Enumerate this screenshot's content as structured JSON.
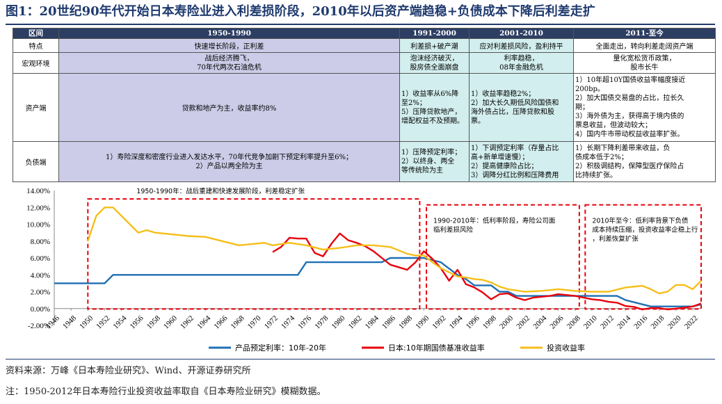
{
  "title": "图1：20世纪90年代开始日本寿险业进入利差损阶段，2010年以后资产端趋稳+负债成本下降后利差走扩",
  "table": {
    "header": [
      "区间",
      "1950-1990",
      "1991-2000",
      "2001-2010",
      "2011-至今"
    ],
    "rows": [
      {
        "label": "特点",
        "cells": [
          "快速增长阶段，正利差",
          "利差损+破产潮",
          "应对利差损风险，盈利持平",
          "全面走出，转向利差走阔资产端"
        ]
      },
      {
        "label": "宏观环境",
        "cells": [
          "战后经济腾飞，\n70年代两次石油危机",
          "泡沫经济破灭，\n股房债全面崩盘",
          "利率趋稳，\n08年金融危机",
          "量化宽松货币政策，\n股市长牛"
        ]
      },
      {
        "label": "资产端",
        "cells": [
          "贷款和地产为主，收益率约8%",
          "1）收益率从6%降\n至2%；\n5）压降贷款地产，\n增配权益不及预期。",
          "1）收益率趋稳2%；\n2）加大长久期低风险国债和\n海外债占比，压降贷款和股\n票。",
          "1）10年超10Y国债收益率幅度接近\n200bp。\n2）加大国债交易盘的占比，拉长久\n期；\n3）海外债为主，获得高于境内债的\n票息收益，但波动较大；\n4）国内牛市带动权益收益率扩张。"
        ]
      },
      {
        "label": "负债端",
        "cells": [
          "1）寿险深度和密度行业进入发达水平，70年代竞争加剧下预定利率提升至6%；\n2）产品以两全险为主",
          "1）压降预定利率；\n2）以终身、两全\n等传统险为主",
          "1）下调预定利率（存量占比\n高+新单增速慢）；\n2）提高健康险占比；\n3）调降分红比例和压降费用",
          "1）长期下降利差带来收益，负\n债成本低于2%；\n2）积极调结构，保障型医疗保险占\n比持续扩张。"
        ]
      }
    ]
  },
  "chart_data": {
    "type": "line",
    "ylim": [
      -2,
      14
    ],
    "yticks": [
      "-2.00%",
      "0.00%",
      "2.00%",
      "4.00%",
      "6.00%",
      "8.00%",
      "10.00%",
      "12.00%",
      "14.00%"
    ],
    "xlim": [
      1946,
      2023
    ],
    "xticks": [
      "1946",
      "1948",
      "1950",
      "1952",
      "1954",
      "1956",
      "1958",
      "1960",
      "1962",
      "1964",
      "1966",
      "1968",
      "1970",
      "1972",
      "1974",
      "1976",
      "1978",
      "1980",
      "1982",
      "1984",
      "1986",
      "1988",
      "1990",
      "1992",
      "1994",
      "1996",
      "1998",
      "2000",
      "2002",
      "2004",
      "2006",
      "2008",
      "2010",
      "2012",
      "2014",
      "2016",
      "2018",
      "2020",
      "2022"
    ],
    "colors": {
      "pricing": "#1f6fb4",
      "jgb": "#e8000b",
      "investment": "#f5bf1a",
      "box": "#e8000b"
    },
    "series": [
      {
        "name": "产品预定利率：10年-20年",
        "key": "pricing",
        "x": [
          1946,
          1952,
          1953,
          1975,
          1976,
          1985,
          1986,
          1990,
          1992,
          1994,
          1995,
          1996,
          1998,
          1999,
          2000,
          2001,
          2013,
          2014,
          2017,
          2022,
          2023
        ],
        "y": [
          3.0,
          3.0,
          4.0,
          4.0,
          5.5,
          5.5,
          6.0,
          6.0,
          5.5,
          4.0,
          3.5,
          2.75,
          2.75,
          2.0,
          2.0,
          1.5,
          1.5,
          1.0,
          0.25,
          0.25,
          0.5
        ]
      },
      {
        "name": "日本:10年期国债基准收益率",
        "key": "jgb",
        "x": [
          1972,
          1973,
          1974,
          1975,
          1976,
          1977,
          1978,
          1979,
          1980,
          1981,
          1982,
          1983,
          1984,
          1985,
          1986,
          1987,
          1988,
          1989,
          1990,
          1991,
          1992,
          1993,
          1994,
          1995,
          1996,
          1997,
          1998,
          1999,
          2000,
          2001,
          2002,
          2003,
          2004,
          2005,
          2006,
          2007,
          2008,
          2009,
          2010,
          2011,
          2012,
          2013,
          2014,
          2015,
          2016,
          2017,
          2018,
          2019,
          2020,
          2021,
          2022,
          2023
        ],
        "y": [
          6.7,
          7.3,
          8.4,
          8.3,
          8.3,
          6.6,
          6.2,
          7.7,
          8.9,
          8.1,
          7.8,
          7.4,
          6.8,
          6.0,
          5.2,
          4.9,
          4.6,
          5.5,
          6.8,
          5.9,
          4.8,
          3.3,
          4.6,
          2.9,
          2.5,
          1.9,
          1.1,
          1.7,
          1.8,
          1.3,
          1.0,
          1.3,
          1.4,
          1.5,
          1.7,
          1.6,
          1.5,
          1.3,
          1.1,
          1.0,
          0.8,
          0.7,
          0.3,
          0.2,
          -0.1,
          0.05,
          0.05,
          -0.1,
          0.0,
          0.1,
          0.25,
          0.6
        ]
      },
      {
        "name": "投资收益率",
        "key": "investment",
        "x": [
          1950,
          1951,
          1952,
          1953,
          1954,
          1955,
          1956,
          1957,
          1958,
          1960,
          1962,
          1964,
          1966,
          1968,
          1970,
          1971,
          1972,
          1974,
          1976,
          1978,
          1980,
          1982,
          1984,
          1986,
          1988,
          1989,
          1990,
          1991,
          1992,
          1993,
          1994,
          1995,
          1996,
          1997,
          1998,
          1999,
          2000,
          2002,
          2004,
          2006,
          2008,
          2010,
          2012,
          2014,
          2016,
          2017,
          2018,
          2019,
          2020,
          2021,
          2022,
          2023
        ],
        "y": [
          8.0,
          11.0,
          12.0,
          12.0,
          11.0,
          10.0,
          9.0,
          9.3,
          9.0,
          8.8,
          8.6,
          8.5,
          8.0,
          7.5,
          7.7,
          7.8,
          7.5,
          7.8,
          7.5,
          7.0,
          7.2,
          7.5,
          7.5,
          7.3,
          6.5,
          6.3,
          6.3,
          5.5,
          4.8,
          4.3,
          3.8,
          3.7,
          3.5,
          3.4,
          3.1,
          2.6,
          2.3,
          2.0,
          2.1,
          2.3,
          2.1,
          2.0,
          2.0,
          2.5,
          2.7,
          2.3,
          1.8,
          2.0,
          2.8,
          2.8,
          2.3,
          3.3
        ]
      }
    ],
    "annotations": [
      {
        "text": "1950-1990年：战后重建和快速发展阶段，利差稳定扩张",
        "x_start": 1950,
        "x_end": 1989.5
      },
      {
        "text": "1990-2010年：低利率阶段，寿险公司面临利差损风险",
        "x_start": 1990.3,
        "x_end": 2008.5
      },
      {
        "text": "2010年至今：低利率背景下负债成本持续压缩，投资收益率企稳上行，利差恢复扩张",
        "x_start": 2009.2,
        "x_end": 2023
      }
    ]
  },
  "footer": {
    "source": "资料来源：万峰《日本寿险业研究》、Wind、开源证券研究所",
    "note": "注：1950-2012年日本寿险行业投资收益率取自《日本寿险业研究》模糊数据。"
  }
}
